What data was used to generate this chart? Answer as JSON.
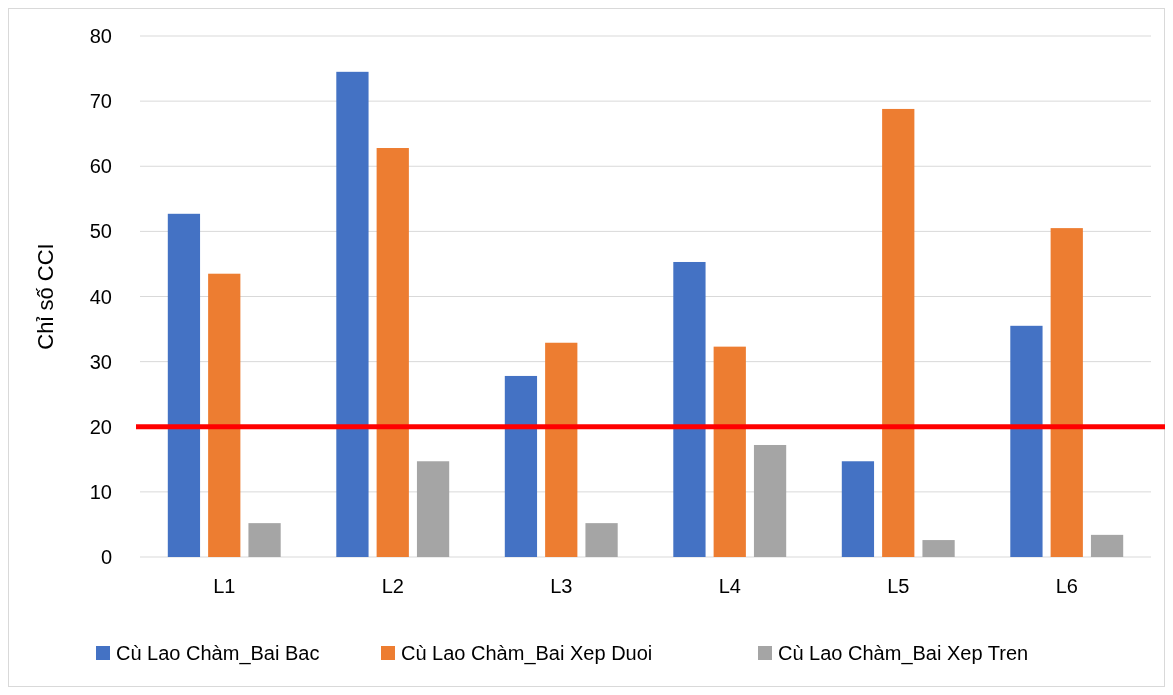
{
  "chart_data": {
    "type": "bar",
    "ylabel": "Chỉ số CCI",
    "categories": [
      "L1",
      "L2",
      "L3",
      "L4",
      "L5",
      "L6"
    ],
    "series": [
      {
        "name": "Cù Lao Chàm_Bai Bac",
        "color": "#4472c4",
        "values": [
          52.7,
          74.5,
          27.8,
          45.3,
          14.7,
          35.5
        ]
      },
      {
        "name": "Cù Lao Chàm_Bai Xep Duoi",
        "color": "#ed7d31",
        "values": [
          43.5,
          62.8,
          32.9,
          32.3,
          68.8,
          50.5
        ]
      },
      {
        "name": "Cù Lao Chàm_Bai Xep Tren",
        "color": "#a5a5a5",
        "values": [
          5.2,
          14.7,
          5.2,
          17.2,
          2.6,
          3.4
        ]
      }
    ],
    "ylim": [
      0,
      80
    ],
    "yticks": [
      0,
      10,
      20,
      30,
      40,
      50,
      60,
      70,
      80
    ],
    "grid": "y",
    "legend": "bottom",
    "ref_lines": [
      {
        "axis": "y",
        "value": 20,
        "color": "#ff0000"
      }
    ]
  }
}
